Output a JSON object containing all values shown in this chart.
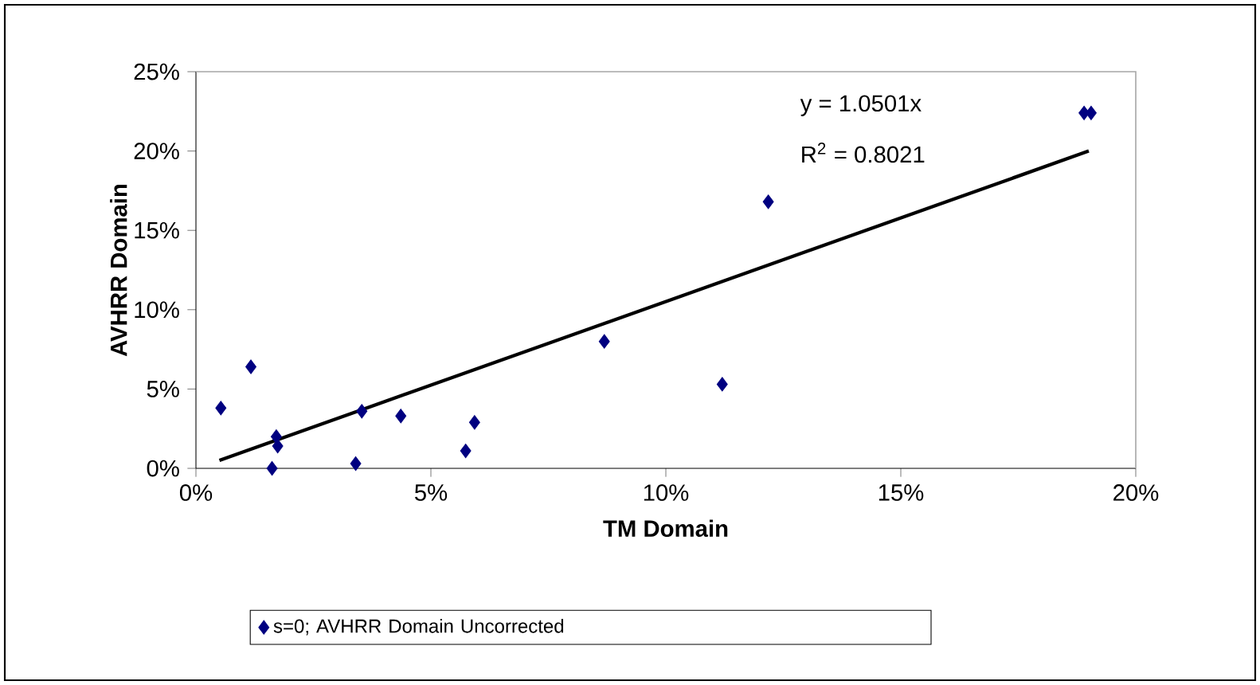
{
  "chart_data": {
    "type": "scatter",
    "xlabel": "TM Domain",
    "ylabel": "AVHRR Domain",
    "xlim": [
      0,
      20
    ],
    "ylim": [
      0,
      25
    ],
    "xticks": [
      {
        "value": 0,
        "label": "0%"
      },
      {
        "value": 5,
        "label": "5%"
      },
      {
        "value": 10,
        "label": "10%"
      },
      {
        "value": 15,
        "label": "15%"
      },
      {
        "value": 20,
        "label": "20%"
      }
    ],
    "yticks": [
      {
        "value": 0,
        "label": "0%"
      },
      {
        "value": 5,
        "label": "5%"
      },
      {
        "value": 10,
        "label": "10%"
      },
      {
        "value": 15,
        "label": "15%"
      },
      {
        "value": 20,
        "label": "20%"
      },
      {
        "value": 25,
        "label": "25%"
      }
    ],
    "marker": "diamond",
    "legend": "bottom",
    "series": [
      {
        "name": "s=0; AVHRR Domain Uncorrected",
        "color": "#000080",
        "x": [
          0.53,
          1.17,
          1.71,
          1.74,
          1.62,
          3.4,
          3.53,
          4.36,
          5.93,
          5.74,
          8.69,
          11.2,
          12.18,
          18.9,
          19.05
        ],
        "values": [
          3.8,
          6.4,
          2.0,
          1.4,
          0,
          0.3,
          3.6,
          3.3,
          2.9,
          1.1,
          8.0,
          5.3,
          16.8,
          22.4,
          22.4
        ]
      },
      {
        "type": "line",
        "color": "#000000",
        "line_style": "solid",
        "marker": "none",
        "x": [
          0.5,
          19.0
        ],
        "values": [
          0.5,
          20.0
        ]
      }
    ],
    "annotations": [
      "y = 1.0501x",
      "R$^{2}$ = 0.8021"
    ]
  }
}
